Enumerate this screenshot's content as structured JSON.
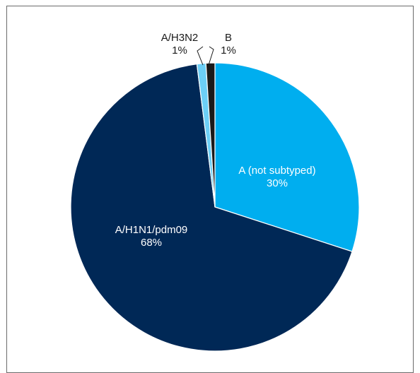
{
  "chart_data": {
    "type": "pie",
    "title": "",
    "slices": [
      {
        "label": "A (not subtyped)",
        "pct_label": "30%",
        "value": 30,
        "color": "#00aeef",
        "label_color": "#ffffff"
      },
      {
        "label": "A/H1N1/pdm09",
        "pct_label": "68%",
        "value": 68,
        "color": "#002856",
        "label_color": "#ffffff"
      },
      {
        "label": "A/H3N2",
        "pct_label": "1%",
        "value": 1,
        "color": "#6ccff6",
        "label_color": "#1a1a1a"
      },
      {
        "label": "B",
        "pct_label": "1%",
        "value": 1,
        "color": "#1a1a1a",
        "label_color": "#1a1a1a"
      }
    ],
    "start_angle_deg": 0,
    "direction": "clockwise",
    "border_color": "#ffffff"
  }
}
